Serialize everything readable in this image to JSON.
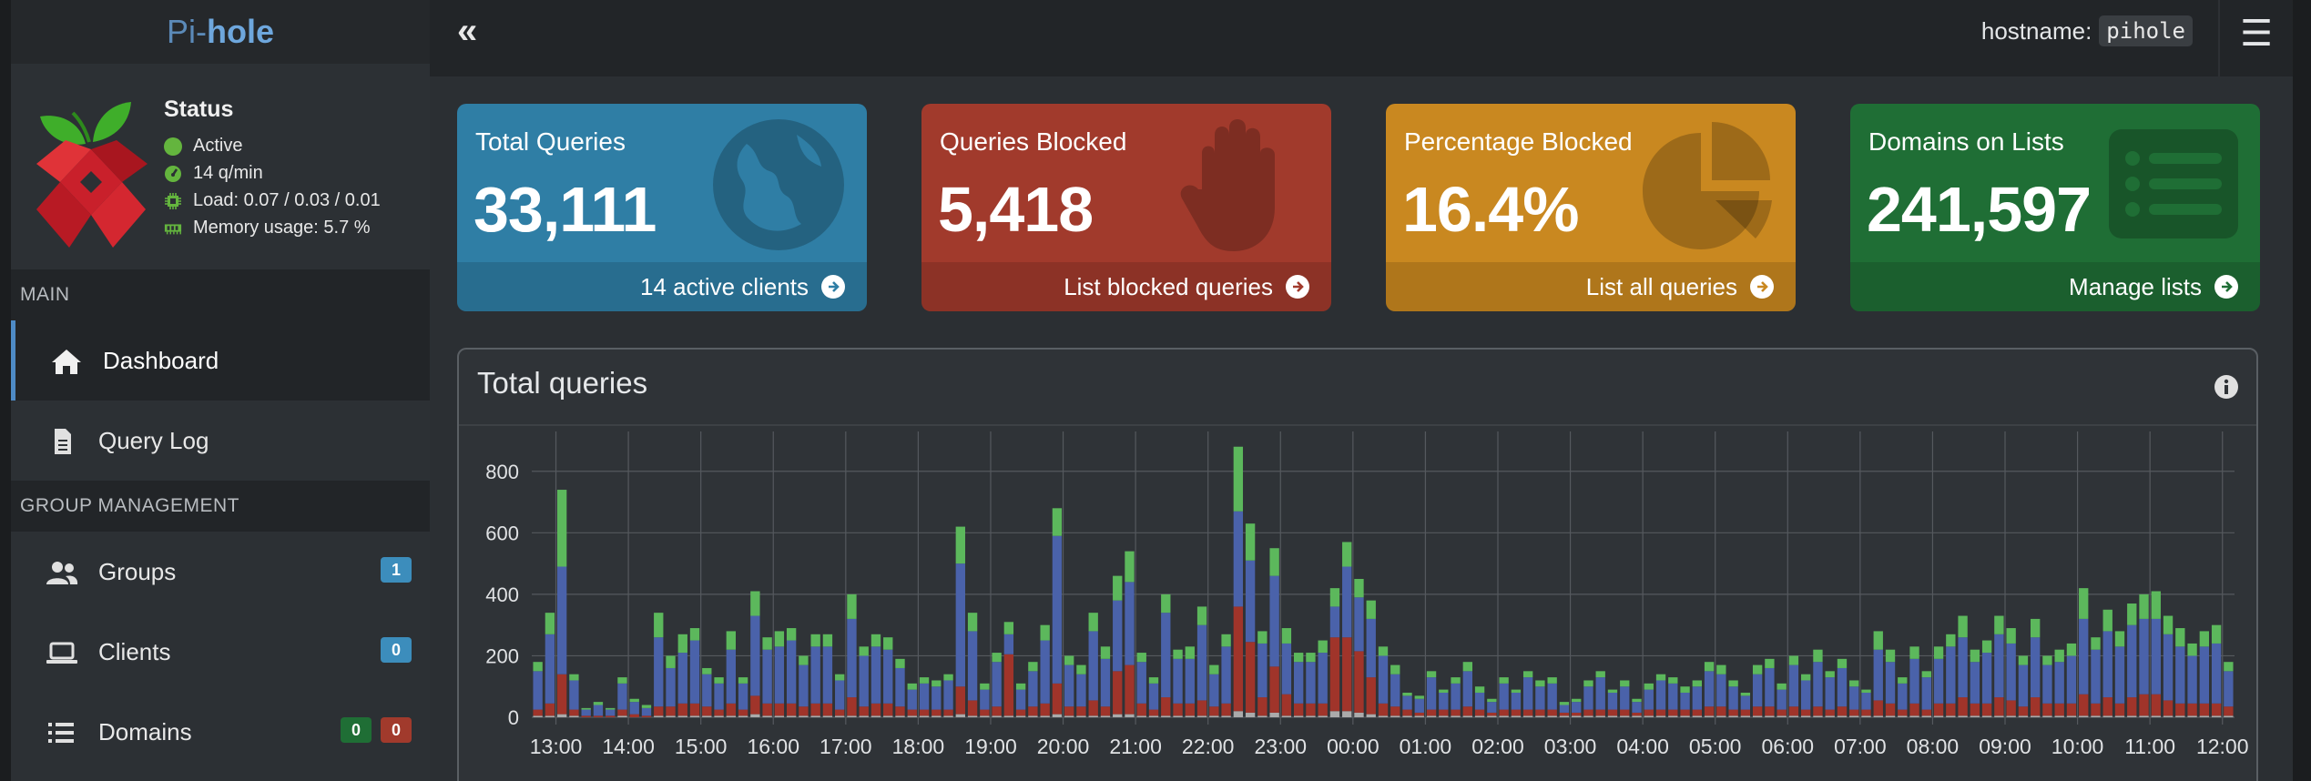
{
  "brand": {
    "prefix": "Pi-",
    "name": "hole"
  },
  "header": {
    "toggle_icon": "angle-double-left-icon",
    "hostname_label": "hostname:",
    "hostname_value": "pihole",
    "menu_icon": "bars-icon"
  },
  "status": {
    "title": "Status",
    "active": "Active",
    "rate": "14 q/min",
    "load": "Load: 0.07 / 0.03 / 0.01",
    "memory": "Memory usage: 5.7 %",
    "colors": {
      "active": "#64b53e",
      "rate": "#64b53e",
      "load": "#64b53e",
      "memory": "#64b53e"
    }
  },
  "sidebar": {
    "main_label": "MAIN",
    "group_label": "GROUP MANAGEMENT",
    "items": [
      {
        "label": "Dashboard",
        "icon": "home-icon"
      },
      {
        "label": "Query Log",
        "icon": "file-icon"
      },
      {
        "label": "Groups",
        "icon": "users-icon",
        "badge": "1"
      },
      {
        "label": "Clients",
        "icon": "laptop-icon",
        "badge": "0"
      },
      {
        "label": "Domains",
        "icon": "list-icon",
        "badge_green": "0",
        "badge_red": "0"
      }
    ]
  },
  "cards": [
    {
      "title": "Total Queries",
      "value": "33,111",
      "footer": "14 active clients",
      "color": "#2f7ea5",
      "icon": "globe-icon"
    },
    {
      "title": "Queries Blocked",
      "value": "5,418",
      "footer": "List blocked queries",
      "color": "#a13a2c",
      "icon": "hand-icon"
    },
    {
      "title": "Percentage Blocked",
      "value": "16.4%",
      "footer": "List all queries",
      "color": "#c98820",
      "icon": "pie-chart-icon"
    },
    {
      "title": "Domains on Lists",
      "value": "241,597",
      "footer": "Manage lists",
      "color": "#1f6e35",
      "icon": "list-alt-icon"
    }
  ],
  "chart_panel": {
    "title": "Total queries",
    "info_icon": "info-circle-icon"
  },
  "chart_data": {
    "type": "bar",
    "stacked": true,
    "title": "Total queries",
    "ylim": [
      0,
      900
    ],
    "yticks": [
      0,
      200,
      400,
      600,
      800
    ],
    "xticks": [
      "13:00",
      "14:00",
      "15:00",
      "16:00",
      "17:00",
      "18:00",
      "19:00",
      "20:00",
      "21:00",
      "22:00",
      "23:00",
      "00:00",
      "01:00",
      "02:00",
      "03:00",
      "04:00",
      "05:00",
      "06:00",
      "07:00",
      "08:00",
      "09:00",
      "10:00",
      "11:00",
      "12:00"
    ],
    "grid": true,
    "bars_per_hour": 6,
    "series_colors": {
      "blocked": "#a0342a",
      "permitted": "#4a62aa",
      "cached": "#5cb85c",
      "other": "#aaaaaa"
    },
    "totals": [
      180,
      340,
      740,
      140,
      30,
      50,
      30,
      130,
      60,
      40,
      340,
      200,
      270,
      290,
      160,
      130,
      280,
      130,
      410,
      260,
      280,
      290,
      200,
      270,
      270,
      140,
      400,
      230,
      270,
      260,
      190,
      110,
      130,
      120,
      140,
      620,
      340,
      110,
      210,
      310,
      110,
      180,
      300,
      680,
      200,
      170,
      340,
      230,
      460,
      540,
      210,
      130,
      400,
      220,
      230,
      360,
      170,
      270,
      880,
      630,
      280,
      550,
      290,
      210,
      210,
      250,
      420,
      570,
      450,
      380,
      230,
      170,
      80,
      70,
      150,
      90,
      130,
      180,
      100,
      60,
      130,
      90,
      150,
      120,
      130,
      50,
      60,
      120,
      150,
      90,
      120,
      60,
      110,
      140,
      130,
      100,
      120,
      180,
      170,
      120,
      80,
      170,
      190,
      110,
      200,
      140,
      220,
      150,
      190,
      120,
      90,
      280,
      220,
      130,
      230,
      150,
      230,
      270,
      330,
      220,
      250,
      330,
      290,
      200,
      320,
      200,
      220,
      240,
      420,
      260,
      350,
      280,
      370,
      400,
      410,
      330,
      290,
      240,
      280,
      300,
      180
    ],
    "blocked": [
      20,
      40,
      130,
      20,
      5,
      5,
      5,
      20,
      10,
      5,
      30,
      30,
      40,
      40,
      30,
      20,
      40,
      20,
      60,
      40,
      40,
      40,
      30,
      40,
      40,
      20,
      60,
      30,
      40,
      40,
      30,
      20,
      20,
      20,
      20,
      90,
      50,
      20,
      30,
      200,
      20,
      30,
      40,
      100,
      30,
      30,
      50,
      30,
      140,
      160,
      40,
      20,
      60,
      40,
      40,
      50,
      30,
      40,
      340,
      230,
      60,
      150,
      70,
      40,
      40,
      40,
      240,
      240,
      200,
      120,
      40,
      30,
      20,
      10,
      20,
      20,
      20,
      30,
      20,
      10,
      20,
      20,
      20,
      20,
      20,
      10,
      10,
      20,
      20,
      20,
      20,
      10,
      20,
      20,
      20,
      20,
      20,
      30,
      30,
      20,
      20,
      30,
      30,
      20,
      30,
      20,
      30,
      20,
      30,
      20,
      20,
      50,
      40,
      20,
      40,
      20,
      40,
      40,
      60,
      40,
      40,
      60,
      50,
      30,
      60,
      40,
      40,
      40,
      70,
      40,
      60,
      40,
      60,
      70,
      70,
      50,
      40,
      40,
      40,
      40,
      30
    ],
    "cached": [
      30,
      70,
      250,
      20,
      5,
      10,
      5,
      20,
      10,
      10,
      80,
      40,
      60,
      40,
      20,
      20,
      60,
      20,
      80,
      40,
      50,
      40,
      30,
      40,
      40,
      20,
      80,
      30,
      40,
      40,
      30,
      20,
      20,
      20,
      20,
      120,
      60,
      20,
      30,
      40,
      20,
      30,
      50,
      90,
      30,
      30,
      60,
      40,
      80,
      100,
      30,
      20,
      60,
      30,
      40,
      60,
      30,
      40,
      210,
      120,
      40,
      90,
      50,
      30,
      30,
      40,
      60,
      80,
      60,
      60,
      30,
      30,
      10,
      10,
      20,
      10,
      20,
      30,
      20,
      10,
      20,
      10,
      20,
      20,
      20,
      10,
      10,
      20,
      20,
      10,
      20,
      10,
      20,
      20,
      20,
      20,
      20,
      30,
      30,
      20,
      10,
      30,
      30,
      20,
      30,
      20,
      40,
      20,
      30,
      20,
      10,
      60,
      40,
      20,
      40,
      20,
      40,
      40,
      70,
      40,
      40,
      60,
      50,
      30,
      60,
      30,
      40,
      40,
      100,
      40,
      70,
      50,
      70,
      80,
      90,
      60,
      60,
      40,
      50,
      60,
      30
    ],
    "other": [
      5,
      5,
      10,
      5,
      0,
      0,
      0,
      5,
      0,
      0,
      5,
      5,
      5,
      5,
      5,
      5,
      5,
      5,
      10,
      5,
      5,
      5,
      5,
      5,
      5,
      5,
      5,
      5,
      5,
      5,
      5,
      5,
      5,
      5,
      5,
      10,
      5,
      5,
      5,
      5,
      5,
      5,
      5,
      10,
      5,
      5,
      5,
      5,
      10,
      10,
      5,
      5,
      5,
      5,
      5,
      5,
      5,
      5,
      20,
      15,
      5,
      15,
      5,
      5,
      5,
      5,
      20,
      20,
      15,
      10,
      5,
      5,
      5,
      5,
      5,
      5,
      5,
      5,
      5,
      5,
      5,
      5,
      5,
      5,
      5,
      5,
      5,
      5,
      5,
      5,
      5,
      5,
      5,
      5,
      5,
      5,
      5,
      5,
      5,
      5,
      5,
      5,
      5,
      5,
      5,
      5,
      5,
      5,
      5,
      5,
      5,
      5,
      5,
      5,
      5,
      5,
      5,
      5,
      5,
      5,
      5,
      5,
      5,
      5,
      5,
      5,
      5,
      5,
      5,
      5,
      5,
      5,
      5,
      5,
      5,
      5,
      5,
      5,
      5,
      5,
      5
    ]
  }
}
